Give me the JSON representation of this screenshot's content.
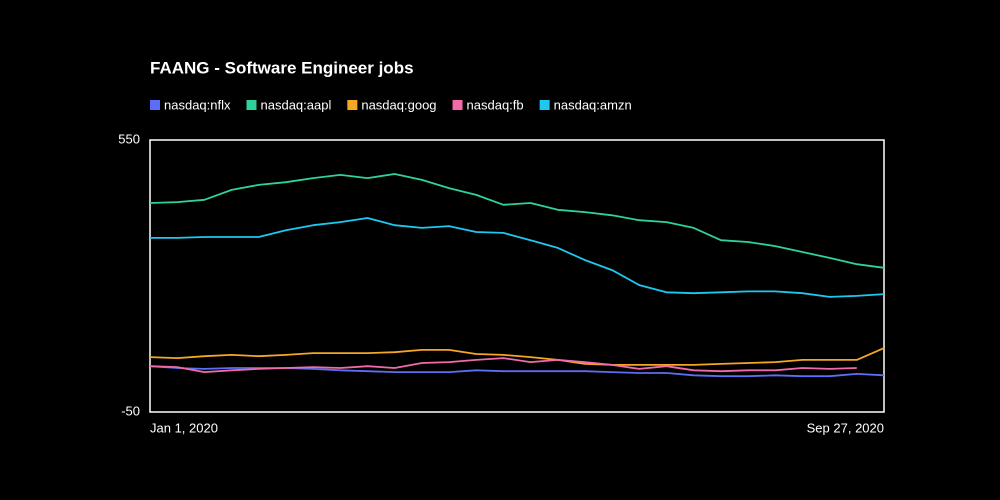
{
  "chart_data": {
    "type": "line",
    "title": "FAANG - Software Engineer jobs",
    "x": [
      "2020-01-01",
      "2020-01-11",
      "2020-01-21",
      "2020-01-31",
      "2020-02-10",
      "2020-02-20",
      "2020-03-01",
      "2020-03-11",
      "2020-03-21",
      "2020-03-31",
      "2020-04-10",
      "2020-04-20",
      "2020-04-30",
      "2020-05-10",
      "2020-05-20",
      "2020-05-30",
      "2020-06-09",
      "2020-06-19",
      "2020-06-29",
      "2020-07-09",
      "2020-07-19",
      "2020-07-29",
      "2020-08-08",
      "2020-08-18",
      "2020-08-28",
      "2020-09-07",
      "2020-09-17",
      "2020-09-27"
    ],
    "series": [
      {
        "name": "nasdaq:nflx",
        "color": "#5b6ef5",
        "values": [
          51,
          47,
          45,
          47,
          47,
          47,
          45,
          42,
          40,
          38,
          38,
          38,
          42,
          40,
          40,
          40,
          40,
          38,
          36,
          36,
          31,
          29,
          29,
          31,
          29,
          29,
          34,
          31
        ]
      },
      {
        "name": "nasdaq:aapl",
        "color": "#2fd39a",
        "values": [
          411,
          413,
          418,
          440,
          451,
          457,
          466,
          473,
          466,
          475,
          462,
          444,
          429,
          407,
          411,
          396,
          391,
          384,
          373,
          369,
          356,
          329,
          325,
          316,
          303,
          290,
          276,
          268
        ]
      },
      {
        "name": "nasdaq:goog",
        "color": "#f5a623",
        "values": [
          71,
          69,
          73,
          76,
          73,
          76,
          80,
          80,
          80,
          82,
          87,
          87,
          78,
          76,
          71,
          65,
          56,
          54,
          54,
          54,
          54,
          56,
          58,
          60,
          65,
          65,
          65,
          91
        ]
      },
      {
        "name": "nasdaq:fb",
        "color": "#f06ba8",
        "values": [
          51,
          49,
          38,
          42,
          45,
          47,
          49,
          47,
          51,
          47,
          58,
          60,
          65,
          69,
          60,
          65,
          60,
          54,
          45,
          51,
          42,
          40,
          42,
          42,
          47,
          45,
          47,
          null
        ]
      },
      {
        "name": "nasdaq:amzn",
        "color": "#1ec8f0",
        "values": [
          334,
          334,
          336,
          336,
          336,
          351,
          362,
          369,
          378,
          362,
          356,
          360,
          347,
          345,
          329,
          312,
          285,
          263,
          230,
          214,
          212,
          214,
          216,
          216,
          212,
          204,
          206,
          210
        ]
      }
    ],
    "xlim": [
      "2020-01-01",
      "2020-09-27"
    ],
    "xticks": [
      {
        "value": "2020-01-01",
        "label": "Jan 1, 2020"
      },
      {
        "value": "2020-09-27",
        "label": "Sep 27, 2020"
      }
    ],
    "ylim": [
      -50,
      550
    ],
    "yticks": [
      -50,
      550
    ]
  }
}
